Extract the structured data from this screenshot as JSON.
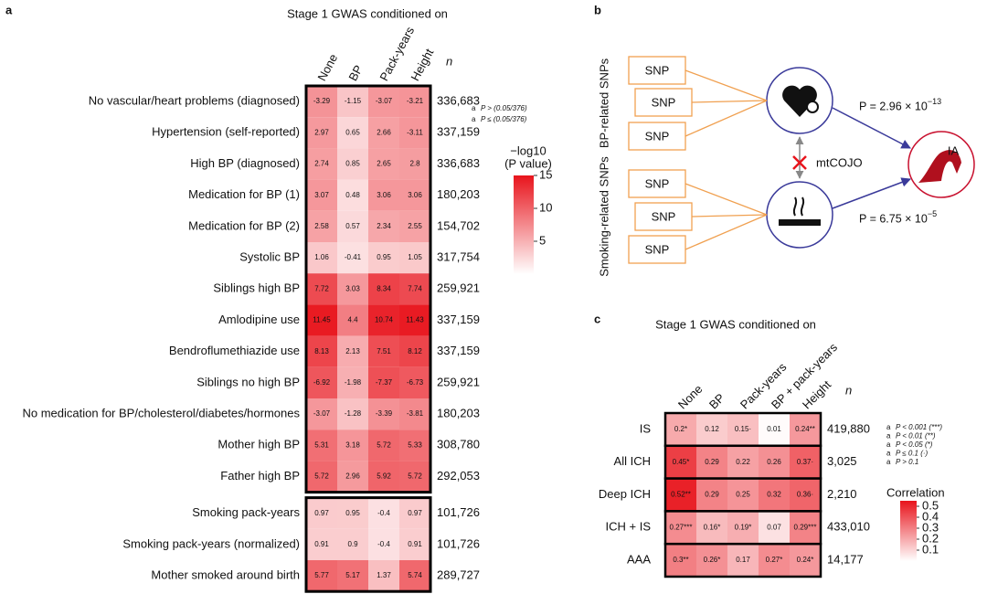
{
  "panel_a": {
    "letter": "a",
    "title": "Stage 1 GWAS conditioned on",
    "columns": [
      "None",
      "BP",
      "Pack-years",
      "Height"
    ],
    "n_header": "n",
    "groups": [
      {
        "rows": [
          {
            "label": "No vascular/heart problems (diagnosed)",
            "n": "336,683",
            "values": [
              -3.29,
              -1.15,
              -3.07,
              -3.21
            ],
            "significant": [
              true,
              false,
              true,
              true
            ]
          },
          {
            "label": "Hypertension (self-reported)",
            "n": "337,159",
            "values": [
              2.97,
              0.65,
              2.66,
              -3.11
            ],
            "significant": [
              true,
              false,
              true,
              true
            ]
          },
          {
            "label": "High BP (diagnosed)",
            "n": "336,683",
            "values": [
              2.74,
              0.85,
              2.65,
              2.8
            ],
            "significant": [
              true,
              false,
              true,
              true
            ]
          },
          {
            "label": "Medication for BP (1)",
            "n": "180,203",
            "values": [
              3.07,
              0.48,
              3.06,
              3.06
            ],
            "significant": [
              true,
              false,
              true,
              true
            ]
          },
          {
            "label": "Medication for BP (2)",
            "n": "154,702",
            "values": [
              2.58,
              0.57,
              2.34,
              2.55
            ],
            "significant": [
              true,
              false,
              true,
              true
            ]
          },
          {
            "label": "Systolic BP",
            "n": "317,754",
            "values": [
              1.06,
              -0.41,
              0.95,
              1.05
            ],
            "significant": [
              true,
              false,
              true,
              true
            ]
          },
          {
            "label": "Siblings high BP",
            "n": "259,921",
            "values": [
              7.72,
              3.03,
              8.34,
              7.74
            ],
            "significant": [
              true,
              false,
              true,
              true
            ]
          },
          {
            "label": "Amlodipine use",
            "n": "337,159",
            "values": [
              11.45,
              4.4,
              10.74,
              11.43
            ],
            "significant": [
              true,
              false,
              true,
              true
            ]
          },
          {
            "label": "Bendroflumethiazide use",
            "n": "337,159",
            "values": [
              8.13,
              2.13,
              7.51,
              8.12
            ],
            "significant": [
              true,
              false,
              true,
              true
            ]
          },
          {
            "label": "Siblings no high BP",
            "n": "259,921",
            "values": [
              -6.92,
              -1.98,
              -7.37,
              -6.73
            ],
            "significant": [
              true,
              false,
              true,
              true
            ]
          },
          {
            "label": "No medication for BP/cholesterol/diabetes/hormones",
            "n": "180,203",
            "values": [
              -3.07,
              -1.28,
              -3.39,
              -3.81
            ],
            "significant": [
              true,
              false,
              true,
              true
            ]
          },
          {
            "label": "Mother high BP",
            "n": "308,780",
            "values": [
              5.31,
              3.18,
              5.72,
              5.33
            ],
            "significant": [
              true,
              false,
              true,
              true
            ]
          },
          {
            "label": "Father high BP",
            "n": "292,053",
            "values": [
              5.72,
              2.96,
              5.92,
              5.72
            ],
            "significant": [
              true,
              false,
              true,
              true
            ]
          }
        ]
      },
      {
        "rows": [
          {
            "label": "Smoking pack-years",
            "n": "101,726",
            "values": [
              0.97,
              0.95,
              -0.4,
              0.97
            ],
            "significant": [
              true,
              true,
              false,
              true
            ]
          },
          {
            "label": "Smoking pack-years (normalized)",
            "n": "101,726",
            "values": [
              0.91,
              0.9,
              -0.4,
              0.91
            ],
            "significant": [
              true,
              true,
              false,
              true
            ]
          },
          {
            "label": "Mother smoked around birth",
            "n": "289,727",
            "values": [
              5.77,
              5.17,
              1.37,
              5.74
            ],
            "significant": [
              true,
              false,
              false,
              false
            ]
          }
        ]
      }
    ],
    "legend": [
      {
        "glyph": "a",
        "text": "P > (0.05/376)"
      },
      {
        "glyph": "a",
        "text": "P ≤ (0.05/376)"
      }
    ],
    "colorbar": {
      "title": "−log10",
      "title2": "(P value)",
      "lim": [
        0,
        15
      ],
      "ticks": [
        5,
        10,
        15
      ]
    }
  },
  "panel_b": {
    "letter": "b",
    "groups": [
      {
        "label": "BP-related SNPs",
        "snps": [
          "SNP",
          "SNP",
          "SNP"
        ],
        "p": "P = 2.96 × 10",
        "exponent": "−13"
      },
      {
        "label": "Smoking-related SNPs",
        "snps": [
          "SNP",
          "SNP",
          "SNP"
        ],
        "p": "P = 6.75 × 10",
        "exponent": "−5"
      }
    ],
    "method": "mtCOJO",
    "outcome": "IA"
  },
  "panel_c": {
    "letter": "c",
    "title": "Stage 1 GWAS conditioned on",
    "columns": [
      "None",
      "BP",
      "Pack-years",
      "BP + pack-years",
      "Height"
    ],
    "n_header": "n",
    "rows": [
      {
        "label": "IS",
        "n": "419,880",
        "values": [
          0.2,
          0.12,
          0.15,
          0.01,
          0.24
        ],
        "value_labels": [
          "0.2*",
          "0.12",
          "0.15·",
          "0.01",
          "0.24**"
        ]
      },
      {
        "label": "All ICH",
        "n": "3,025",
        "values": [
          0.45,
          0.29,
          0.22,
          0.26,
          0.37
        ],
        "value_labels": [
          "0.45*",
          "0.29",
          "0.22",
          "0.26",
          "0.37·"
        ]
      },
      {
        "label": "Deep ICH",
        "n": "2,210",
        "values": [
          0.52,
          0.29,
          0.25,
          0.32,
          0.36
        ],
        "value_labels": [
          "0.52**",
          "0.29",
          "0.25",
          "0.32",
          "0.36·"
        ]
      },
      {
        "label": "ICH + IS",
        "n": "433,010",
        "values": [
          0.27,
          0.16,
          0.19,
          0.07,
          0.29
        ],
        "value_labels": [
          "0.27***",
          "0.16*",
          "0.19*",
          "0.07",
          "0.29***"
        ]
      },
      {
        "label": "AAA",
        "n": "14,177",
        "values": [
          0.3,
          0.26,
          0.17,
          0.27,
          0.24
        ],
        "value_labels": [
          "0.3**",
          "0.26*",
          "0.17",
          "0.27*",
          "0.24*"
        ]
      }
    ],
    "legend": [
      {
        "glyph": "a",
        "text": "P < 0.001 (***)"
      },
      {
        "glyph": "a",
        "text": "P < 0.01 (**)"
      },
      {
        "glyph": "a",
        "text": "P < 0.05 (*)"
      },
      {
        "glyph": "a",
        "text": "P ≤ 0.1 (·)"
      },
      {
        "glyph": "a",
        "text": "P > 0.1"
      }
    ],
    "colorbar": {
      "title": "Correlation",
      "lim": [
        0,
        0.55
      ],
      "ticks": [
        0.1,
        0.2,
        0.3,
        0.4,
        0.5
      ]
    }
  }
}
